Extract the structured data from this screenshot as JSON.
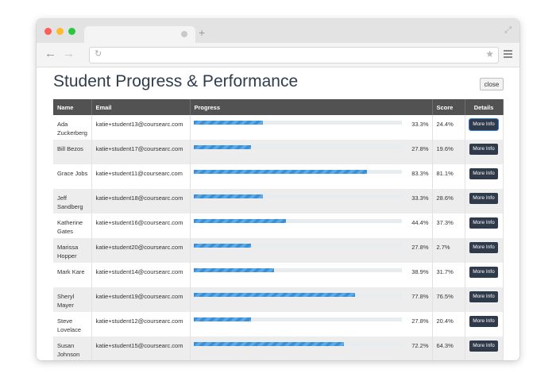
{
  "browser": {
    "url": ""
  },
  "page": {
    "title": "Student Progress & Performance",
    "close_label": "close"
  },
  "table": {
    "headers": [
      "Name",
      "Email",
      "Progress",
      "Score",
      "Details"
    ],
    "rows": [
      {
        "name_l1": "Ada",
        "name_l2": "Zuckerberg",
        "email": "katie+student13@coursearc.com",
        "progress": 33.3,
        "progress_label": "33.3%",
        "score": "24.4%",
        "details": "More Info"
      },
      {
        "name_l1": "Bill Bezos",
        "name_l2": "",
        "email": "katie+student17@coursearc.com",
        "progress": 27.8,
        "progress_label": "27.8%",
        "score": "19.6%",
        "details": "More Info"
      },
      {
        "name_l1": "Grace Jobs",
        "name_l2": "",
        "email": "katie+student11@coursearc.com",
        "progress": 83.3,
        "progress_label": "83.3%",
        "score": "81.1%",
        "details": "More Info"
      },
      {
        "name_l1": "Jeff",
        "name_l2": "Sandberg",
        "email": "katie+student18@coursearc.com",
        "progress": 33.3,
        "progress_label": "33.3%",
        "score": "28.6%",
        "details": "More Info"
      },
      {
        "name_l1": "Katherine",
        "name_l2": "Gates",
        "email": "katie+student16@coursearc.com",
        "progress": 44.4,
        "progress_label": "44.4%",
        "score": "37.3%",
        "details": "More Info"
      },
      {
        "name_l1": "Marissa",
        "name_l2": "Hopper",
        "email": "katie+student20@coursearc.com",
        "progress": 27.8,
        "progress_label": "27.8%",
        "score": "2.7%",
        "details": "More Info"
      },
      {
        "name_l1": "Mark Kare",
        "name_l2": "",
        "email": "katie+student14@coursearc.com",
        "progress": 38.9,
        "progress_label": "38.9%",
        "score": "31.7%",
        "details": "More Info"
      },
      {
        "name_l1": "Sheryl",
        "name_l2": "Mayer",
        "email": "katie+student19@coursearc.com",
        "progress": 77.8,
        "progress_label": "77.8%",
        "score": "76.5%",
        "details": "More Info"
      },
      {
        "name_l1": "Steve",
        "name_l2": "Lovelace",
        "email": "katie+student12@coursearc.com",
        "progress": 27.8,
        "progress_label": "27.8%",
        "score": "20.4%",
        "details": "More Info"
      },
      {
        "name_l1": "Susan",
        "name_l2": "Johnson",
        "email": "katie+student15@coursearc.com",
        "progress": 72.2,
        "progress_label": "72.2%",
        "score": "64.3%",
        "details": "More Info"
      }
    ]
  },
  "colors": {
    "header_bg": "#525252",
    "bar": "#3a8fd6",
    "button_bg": "#2f3b4b",
    "title": "#2f3d4e"
  },
  "icons": [
    "back-arrow-icon",
    "forward-arrow-icon",
    "reload-icon",
    "star-icon",
    "menu-icon",
    "expand-icon",
    "new-tab-icon",
    "tab-close-icon"
  ]
}
